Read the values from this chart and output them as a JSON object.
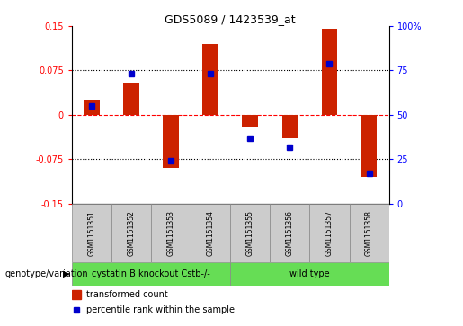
{
  "title": "GDS5089 / 1423539_at",
  "samples": [
    "GSM1151351",
    "GSM1151352",
    "GSM1151353",
    "GSM1151354",
    "GSM1151355",
    "GSM1151356",
    "GSM1151357",
    "GSM1151358"
  ],
  "transformed_count": [
    0.025,
    0.055,
    -0.09,
    0.12,
    -0.02,
    -0.04,
    0.145,
    -0.105
  ],
  "percentile_rank": [
    55,
    73,
    24,
    73,
    37,
    32,
    79,
    17
  ],
  "group1_label": "cystatin B knockout Cstb-/-",
  "group2_label": "wild type",
  "group1_n": 4,
  "group2_n": 4,
  "group_color": "#66dd55",
  "bar_color": "#cc2200",
  "dot_color": "#0000cc",
  "sample_box_color": "#cccccc",
  "ylim_left": [
    -0.15,
    0.15
  ],
  "ylim_right": [
    0,
    100
  ],
  "yticks_left": [
    -0.15,
    -0.075,
    0,
    0.075,
    0.15
  ],
  "yticks_right": [
    0,
    25,
    50,
    75,
    100
  ],
  "hlines_dotted": [
    0.075,
    -0.075
  ],
  "hline_dashed": 0,
  "genotype_label": "genotype/variation",
  "legend_bar": "transformed count",
  "legend_dot": "percentile rank within the sample",
  "bar_width": 0.4,
  "title_fontsize": 9,
  "tick_fontsize": 7,
  "sample_fontsize": 5.5,
  "group_fontsize": 7,
  "legend_fontsize": 7,
  "genotype_fontsize": 7
}
